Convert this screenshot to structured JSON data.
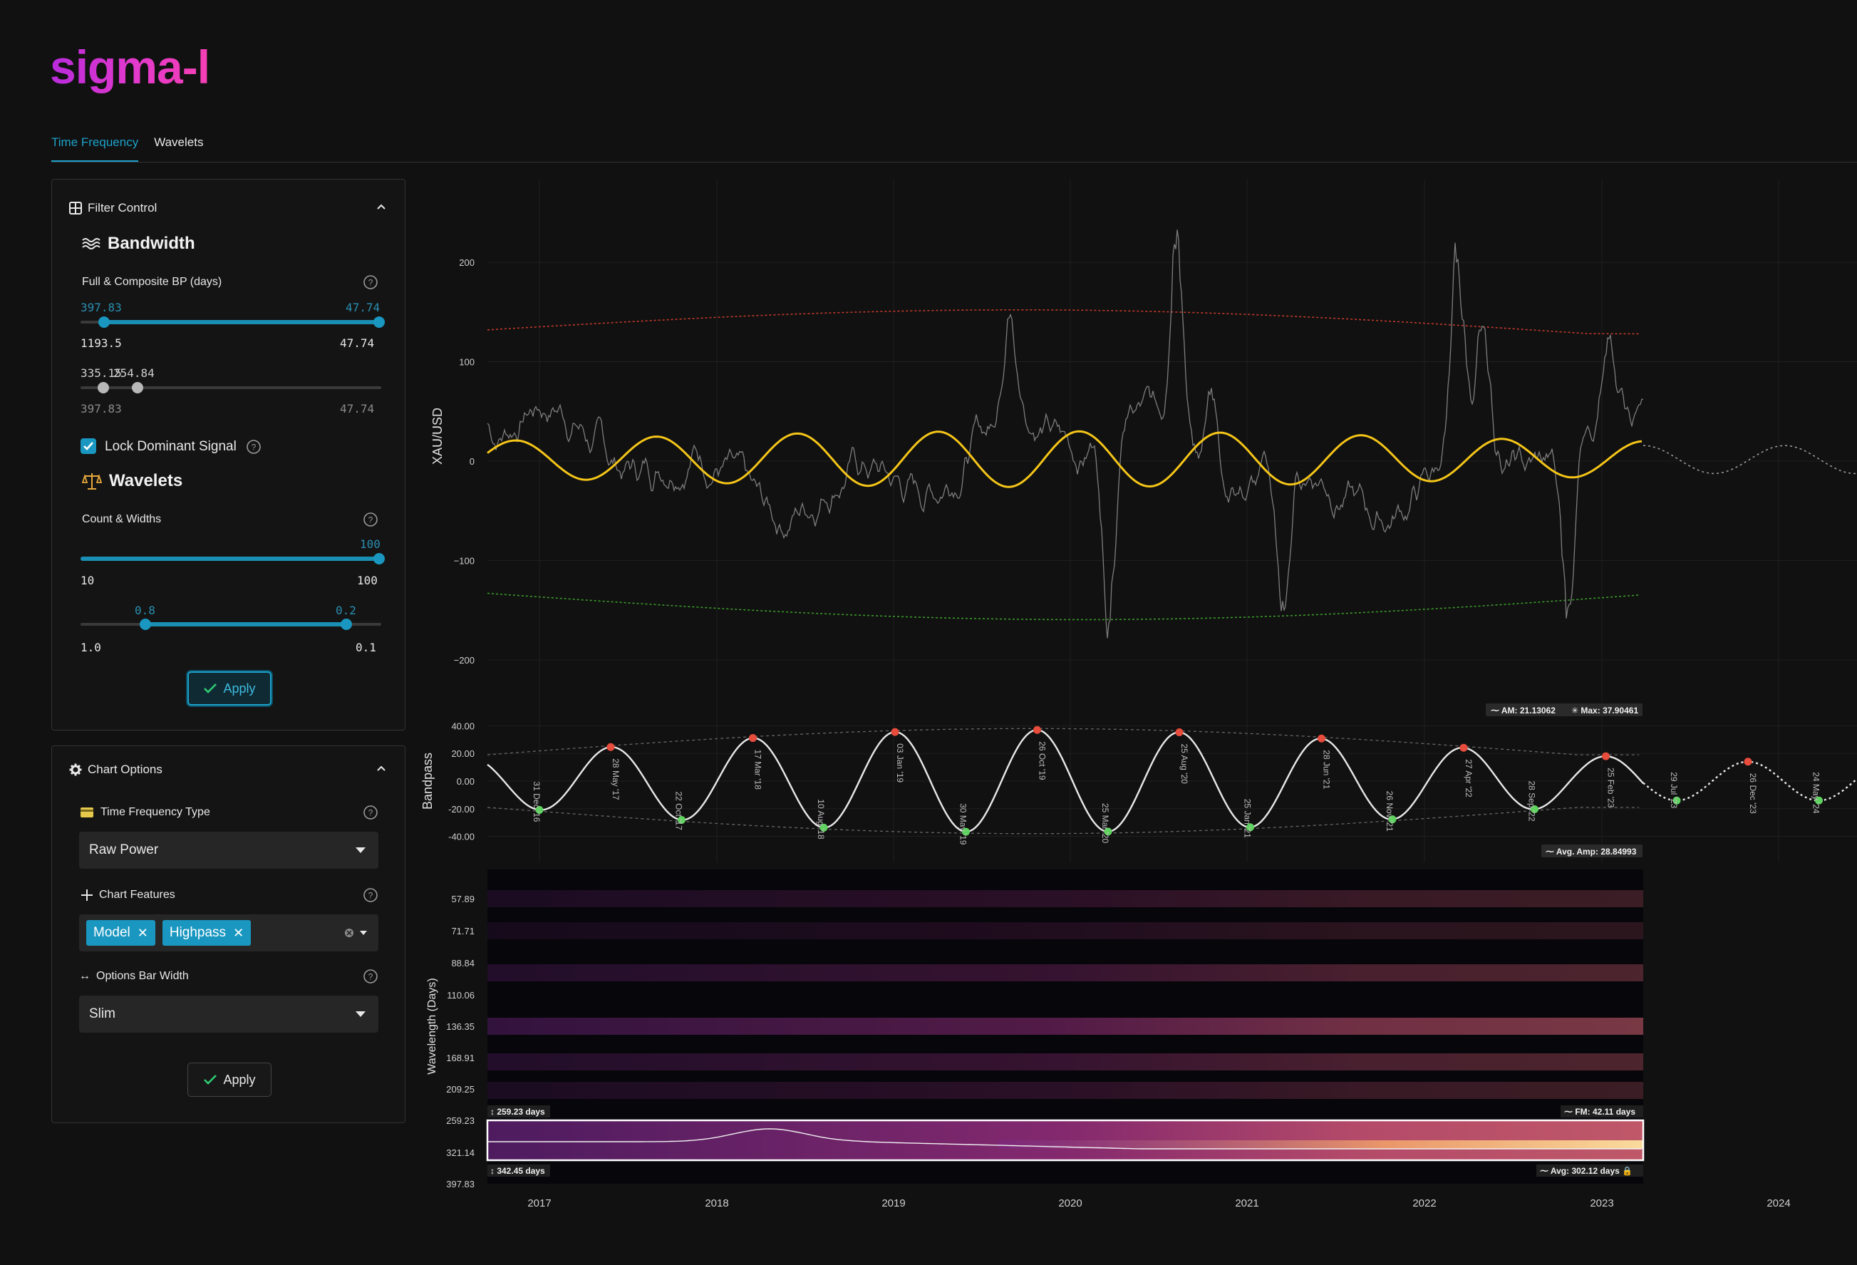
{
  "app": {
    "logo": "sigma-l"
  },
  "tabs": [
    {
      "label": "Time Frequency",
      "active": true
    },
    {
      "label": "Wavelets",
      "active": false
    }
  ],
  "filter_control": {
    "title": "Filter Control",
    "bandwidth": {
      "heading": "Bandwidth",
      "label": "Full & Composite BP (days)",
      "full_slider": {
        "low_value": "397.83",
        "high_value": "47.74",
        "min_label": "1193.5",
        "max_label": "47.74"
      },
      "composite_slider": {
        "value_label": "335.15",
        "value_label_2": "254.84",
        "min_label": "397.83",
        "max_label": "47.74"
      }
    },
    "lock_dominant": {
      "label": "Lock Dominant Signal",
      "checked": true
    },
    "wavelets": {
      "heading": "Wavelets",
      "label": "Count & Widths",
      "count_slider": {
        "value": "100",
        "min_label": "10",
        "max_label": "100"
      },
      "width_slider": {
        "low_value": "0.8",
        "high_value": "0.2",
        "min_label": "1.0",
        "max_label": "0.1"
      }
    },
    "apply_label": "Apply"
  },
  "chart_options": {
    "title": "Chart Options",
    "tf_type": {
      "label": "Time Frequency Type",
      "value": "Raw Power"
    },
    "chart_features": {
      "label": "Chart Features",
      "chips": [
        "Model",
        "Highpass"
      ]
    },
    "bar_width": {
      "label": "Options Bar Width",
      "value": "Slim"
    },
    "apply_label": "Apply"
  },
  "colors": {
    "accent": "#1a97c0",
    "price_line": "#8a8a8a",
    "model_line": "#f5c518",
    "upper_band": "#c0392b",
    "lower_band": "#3a9a2a",
    "peak": "#e74c3c",
    "trough": "#5fd35f"
  },
  "chart_data": [
    {
      "type": "line",
      "ylabel": "XAU/USD",
      "yticks": [
        "200",
        "100",
        "0",
        "−100",
        "−200"
      ],
      "ylim": [
        -230,
        280
      ],
      "xticks": [
        "2017",
        "2018",
        "2019",
        "2020",
        "2021",
        "2022",
        "2023",
        "2024"
      ],
      "series": [
        {
          "role": "price (detrended)"
        },
        {
          "role": "model sine",
          "color": "#f5c518"
        },
        {
          "role": "upper envelope",
          "color": "#c0392b"
        },
        {
          "role": "lower envelope",
          "color": "#3a9a2a"
        }
      ]
    },
    {
      "type": "line",
      "ylabel": "Bandpass",
      "yticks": [
        "40.00",
        "20.00",
        "0.00",
        "-20.00",
        "-40.00"
      ],
      "ylim": [
        -45,
        45
      ],
      "annotations": {
        "am": "AM: 21.13062",
        "max": "Max: 37.90461",
        "avg_amp": "Avg. Amp: 28.84993"
      },
      "peaks": [
        "28 May '17",
        "17 Mar '18",
        "03 Jan '19",
        "26 Oct '19",
        "25 Aug '20",
        "28 Jun '21",
        "27 Apr '22",
        "25 Feb '23",
        "26 Dec '23"
      ],
      "troughs": [
        "31 Dec '16",
        "22 Oct '17",
        "10 Aug '18",
        "30 May '19",
        "25 Mar '20",
        "25 Jan '21",
        "26 Nov '21",
        "28 Sep '22",
        "29 Jul '23",
        "24 May '24"
      ]
    },
    {
      "type": "heatmap",
      "ylabel": "Wavelength (Days)",
      "yticks": [
        "57.89",
        "71.71",
        "88.84",
        "110.06",
        "136.35",
        "168.91",
        "209.25",
        "259.23",
        "321.14",
        "397.83"
      ],
      "annotations": {
        "top": "259.23 days",
        "bottom": "342.45 days",
        "fm": "FM: 42.11 days",
        "avg": "Avg: 302.12 days"
      }
    }
  ]
}
